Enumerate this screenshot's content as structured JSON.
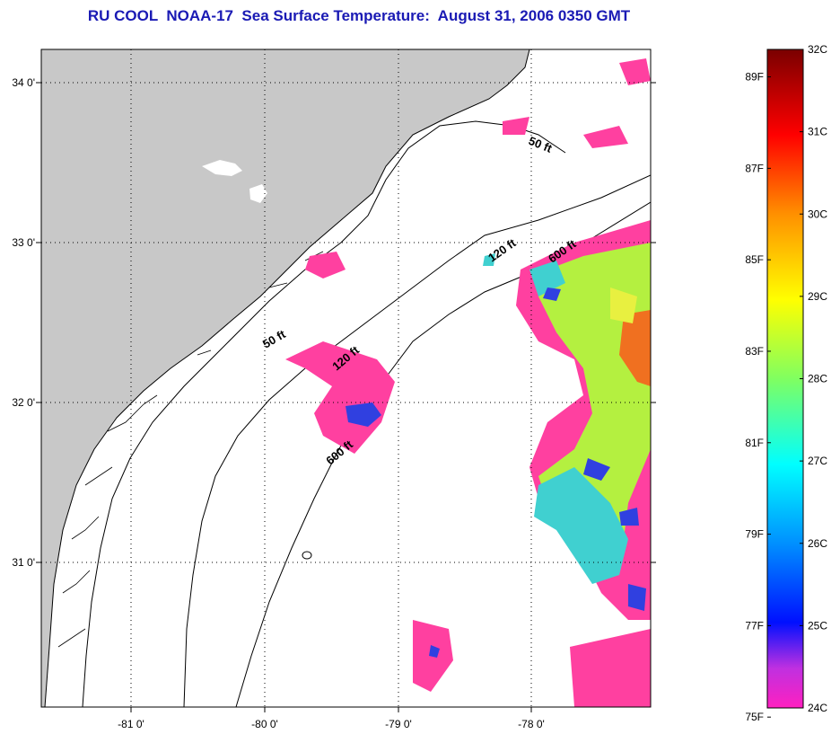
{
  "title": "RU COOL  NOAA-17  Sea Surface Temperature:  August 31, 2006 0350 GMT",
  "map": {
    "lat_ticks": [
      {
        "label": "34 0'",
        "value": 34.0
      },
      {
        "label": "33 0'",
        "value": 33.0
      },
      {
        "label": "32 0'",
        "value": 32.0
      },
      {
        "label": "31 0'",
        "value": 31.0
      }
    ],
    "lon_ticks": [
      {
        "label": "-81 0'",
        "value": -81.0
      },
      {
        "label": "-80 0'",
        "value": -80.0
      },
      {
        "label": "-79 0'",
        "value": -79.0
      },
      {
        "label": "-78 0'",
        "value": -78.0
      }
    ],
    "depth_labels": [
      {
        "text": "50 ft",
        "name": "depth-label-50ft-north"
      },
      {
        "text": "120 ft",
        "name": "depth-label-120ft-north"
      },
      {
        "text": "600 ft",
        "name": "depth-label-600ft-north"
      },
      {
        "text": "50 ft",
        "name": "depth-label-50ft-south"
      },
      {
        "text": "120 ft",
        "name": "depth-label-120ft-south"
      },
      {
        "text": "600 ft",
        "name": "depth-label-600ft-south"
      }
    ],
    "colors": {
      "land": "#c8c8c8",
      "water": "#ffffff",
      "warm": "#f07020",
      "mid": "#b4f040",
      "cool": "#40d0d0",
      "cold": "#ff40a0"
    }
  },
  "colorbar": {
    "celsius_labels": [
      "32C",
      "31C",
      "30C",
      "29C",
      "28C",
      "27C",
      "26C",
      "25C",
      "24C"
    ],
    "fahrenheit_labels": [
      "89F",
      "87F",
      "85F",
      "83F",
      "81F",
      "79F",
      "77F",
      "75F"
    ],
    "range_c": [
      24,
      32
    ]
  }
}
